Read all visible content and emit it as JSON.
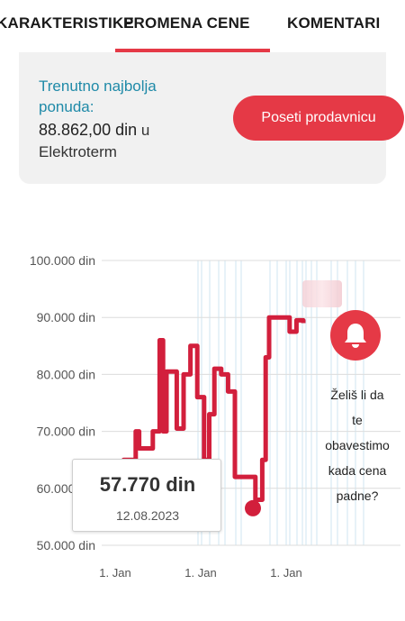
{
  "tabs": [
    {
      "label": "KARAKTERISTIKE"
    },
    {
      "label": "PROMENA CENE"
    },
    {
      "label": "KOMENTARI"
    }
  ],
  "offer": {
    "label": "Trenutno najbolja ponuda:",
    "price": "88.862,00 din",
    "store_prefix": "u",
    "store": "Elektroterm",
    "visit_button": "Poseti prodavnicu"
  },
  "chart_data": {
    "type": "line",
    "series": [
      {
        "values": [
          [
            0,
            60000
          ],
          [
            0.05,
            65000
          ],
          [
            0.1,
            65000
          ],
          [
            0.12,
            70000
          ],
          [
            0.14,
            67000
          ],
          [
            0.22,
            70000
          ],
          [
            0.26,
            86000
          ],
          [
            0.28,
            70000
          ],
          [
            0.3,
            80500
          ],
          [
            0.33,
            80500
          ],
          [
            0.36,
            70500
          ],
          [
            0.4,
            80000
          ],
          [
            0.44,
            85000
          ],
          [
            0.48,
            76000
          ],
          [
            0.52,
            65000
          ],
          [
            0.55,
            73000
          ],
          [
            0.58,
            81000
          ],
          [
            0.62,
            80000
          ],
          [
            0.66,
            77000
          ],
          [
            0.7,
            62000
          ],
          [
            0.78,
            62000
          ],
          [
            0.82,
            58000
          ],
          [
            0.86,
            65000
          ],
          [
            0.88,
            83000
          ],
          [
            0.9,
            90000
          ],
          [
            1.0,
            90000
          ],
          [
            1.02,
            87500
          ],
          [
            1.06,
            89500
          ],
          [
            1.1,
            89000
          ]
        ],
        "color": "#d21f3c"
      }
    ],
    "x_tick_labels": [
      "1. Jan",
      "1. Jan",
      "1. Jan"
    ],
    "y_tick_labels": [
      "100.000 din",
      "90.000 din",
      "80.000 din",
      "70.000 din",
      "60.000 din",
      "50.000 din"
    ],
    "ylim": [
      50000,
      100000
    ],
    "grid": true,
    "highlight_point": {
      "value": 57770,
      "label": "57.770 din",
      "date": "12.08.2023"
    }
  },
  "notify": {
    "lines": [
      "Želiš li da",
      "te",
      "obavestimo",
      "kada cena",
      "padne?"
    ],
    "icon": "bell-icon"
  },
  "colors": {
    "accent": "#e53946",
    "link": "#1f8aa8",
    "line": "#d21f3c"
  }
}
